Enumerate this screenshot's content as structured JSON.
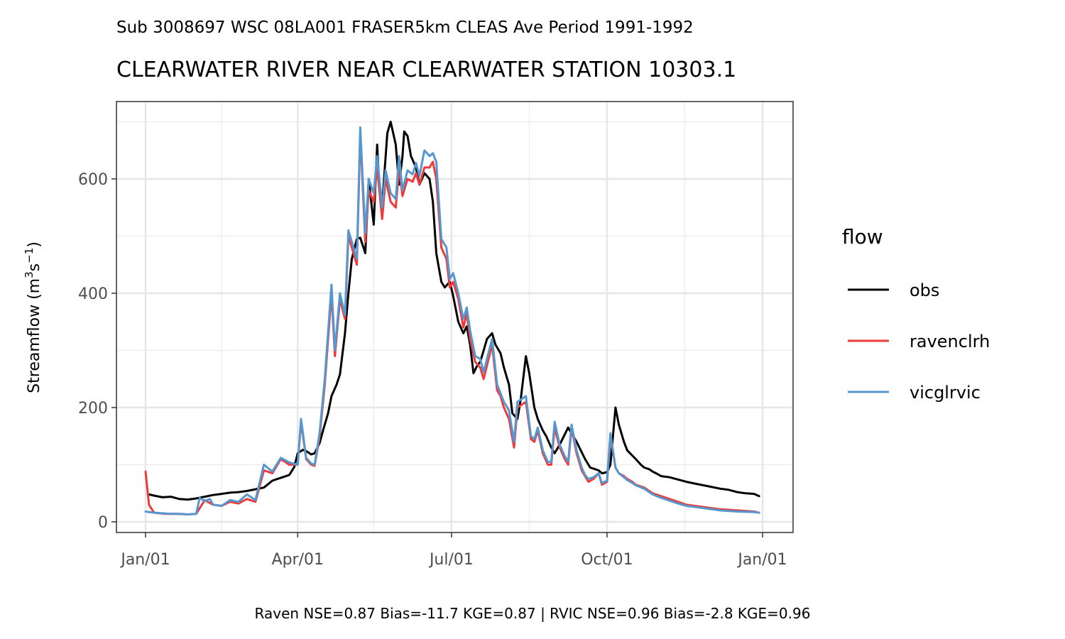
{
  "chart_data": {
    "type": "line",
    "subtitle": "Sub 3008697 WSC 08LA001 FRASER5km CLEAS Ave Period 1991-1992",
    "title": "CLEARWATER RIVER NEAR CLEARWATER STATION 10303.1",
    "xlabel": "",
    "ylabel": "Streamflow (m3s-1)",
    "ylabel_parts": {
      "base": "Streamflow (m",
      "sup1": "3",
      "mid": "s",
      "sup2": "−1",
      "end": ")"
    },
    "xlim": [
      "Jan/01",
      "Jan/01"
    ],
    "ylim": [
      -20,
      720
    ],
    "x_ticks": [
      {
        "day": 0,
        "label": "Jan/01"
      },
      {
        "day": 90,
        "label": "Apr/01"
      },
      {
        "day": 181,
        "label": "Jul/01"
      },
      {
        "day": 273,
        "label": "Oct/01"
      },
      {
        "day": 365,
        "label": "Jan/01"
      }
    ],
    "x_minor_days": [
      45,
      135,
      227,
      319
    ],
    "y_ticks": [
      0,
      200,
      400,
      600
    ],
    "y_minor": [
      100,
      300,
      500,
      700
    ],
    "grid": true,
    "legend": {
      "title": "flow",
      "position": "right"
    },
    "caption": "Raven NSE=0.87 Bias=-11.7 KGE=0.87 | RVIC NSE=0.96 Bias=-2.8 KGE=0.96",
    "series": [
      {
        "name": "obs",
        "color": "#000000",
        "x": [
          2,
          5,
          10,
          15,
          20,
          25,
          30,
          35,
          40,
          45,
          50,
          55,
          60,
          65,
          70,
          75,
          78,
          82,
          85,
          88,
          90,
          93,
          95,
          98,
          100,
          103,
          105,
          108,
          110,
          113,
          115,
          118,
          120,
          122,
          125,
          127,
          130,
          132,
          135,
          137,
          138,
          140,
          143,
          145,
          148,
          150,
          152,
          153,
          155,
          157,
          160,
          162,
          165,
          168,
          170,
          172,
          175,
          177,
          180,
          182,
          185,
          188,
          190,
          192,
          194,
          196,
          198,
          200,
          202,
          205,
          207,
          210,
          212,
          215,
          217,
          220,
          222,
          225,
          227,
          230,
          232,
          235,
          237,
          240,
          242,
          245,
          250,
          255,
          260,
          263,
          265,
          268,
          270,
          273,
          275,
          278,
          280,
          283,
          285,
          290,
          293,
          295,
          298,
          300,
          302,
          305,
          310,
          315,
          320,
          325,
          330,
          335,
          340,
          345,
          350,
          355,
          360,
          363
        ],
        "y": [
          48,
          46,
          43,
          44,
          40,
          39,
          41,
          44,
          47,
          49,
          51,
          52,
          54,
          57,
          60,
          72,
          75,
          79,
          82,
          96,
          120,
          126,
          124,
          118,
          120,
          138,
          160,
          190,
          220,
          240,
          258,
          330,
          400,
          460,
          495,
          497,
          470,
          600,
          520,
          660,
          600,
          555,
          680,
          700,
          660,
          590,
          640,
          683,
          675,
          640,
          620,
          590,
          610,
          600,
          560,
          470,
          420,
          410,
          420,
          395,
          350,
          330,
          342,
          310,
          260,
          272,
          280,
          300,
          320,
          330,
          310,
          295,
          270,
          240,
          190,
          180,
          215,
          290,
          260,
          200,
          180,
          160,
          150,
          130,
          120,
          135,
          165,
          140,
          110,
          95,
          93,
          90,
          85,
          87,
          100,
          200,
          170,
          140,
          125,
          110,
          100,
          95,
          92,
          88,
          85,
          80,
          78,
          74,
          70,
          67,
          64,
          61,
          58,
          56,
          52,
          50,
          49,
          45
        ]
      },
      {
        "name": "ravenclrh",
        "color": "#f03a3a",
        "x": [
          0,
          2,
          5,
          8,
          12,
          18,
          25,
          30,
          35,
          40,
          45,
          50,
          55,
          60,
          65,
          70,
          75,
          80,
          85,
          90,
          92,
          95,
          98,
          100,
          103,
          106,
          110,
          112,
          115,
          118,
          120,
          122,
          125,
          127,
          130,
          132,
          135,
          137,
          140,
          142,
          145,
          148,
          150,
          152,
          155,
          158,
          160,
          162,
          165,
          168,
          170,
          172,
          175,
          178,
          180,
          182,
          185,
          188,
          190,
          192,
          195,
          198,
          200,
          205,
          208,
          210,
          212,
          215,
          218,
          220,
          225,
          228,
          230,
          232,
          235,
          238,
          240,
          242,
          245,
          248,
          250,
          252,
          255,
          258,
          260,
          262,
          265,
          268,
          270,
          273,
          275,
          278,
          280,
          283,
          285,
          288,
          290,
          295,
          300,
          305,
          310,
          315,
          320,
          330,
          340,
          350,
          360,
          363
        ],
        "y": [
          88,
          30,
          16,
          15,
          14,
          14,
          13,
          14,
          38,
          30,
          28,
          35,
          32,
          40,
          35,
          90,
          85,
          110,
          100,
          100,
          175,
          110,
          100,
          98,
          150,
          240,
          400,
          290,
          390,
          355,
          500,
          480,
          450,
          680,
          490,
          580,
          560,
          620,
          530,
          600,
          560,
          550,
          620,
          570,
          600,
          595,
          610,
          590,
          620,
          620,
          630,
          600,
          480,
          460,
          410,
          420,
          390,
          340,
          365,
          320,
          280,
          270,
          250,
          310,
          230,
          220,
          200,
          180,
          130,
          200,
          210,
          145,
          140,
          160,
          120,
          100,
          100,
          165,
          130,
          110,
          100,
          165,
          120,
          90,
          80,
          70,
          75,
          85,
          65,
          70,
          150,
          95,
          85,
          80,
          75,
          70,
          65,
          60,
          50,
          45,
          40,
          35,
          30,
          26,
          22,
          20,
          18,
          16
        ]
      },
      {
        "name": "vicglrvic",
        "color": "#5597cf",
        "x": [
          0,
          5,
          10,
          15,
          20,
          25,
          30,
          32,
          35,
          38,
          40,
          45,
          50,
          55,
          60,
          65,
          70,
          75,
          80,
          85,
          90,
          92,
          95,
          98,
          100,
          103,
          106,
          110,
          112,
          115,
          118,
          120,
          122,
          125,
          127,
          130,
          132,
          135,
          137,
          140,
          142,
          145,
          148,
          150,
          152,
          155,
          158,
          160,
          162,
          165,
          168,
          170,
          172,
          175,
          178,
          180,
          182,
          185,
          188,
          190,
          192,
          195,
          198,
          200,
          205,
          208,
          210,
          212,
          215,
          218,
          220,
          225,
          228,
          230,
          232,
          235,
          238,
          240,
          242,
          245,
          248,
          250,
          252,
          255,
          258,
          260,
          262,
          265,
          268,
          270,
          273,
          275,
          278,
          280,
          283,
          285,
          288,
          290,
          295,
          300,
          305,
          310,
          315,
          320,
          330,
          340,
          350,
          360,
          363
        ],
        "y": [
          18,
          16,
          15,
          14,
          14,
          13,
          14,
          42,
          36,
          40,
          30,
          28,
          38,
          35,
          48,
          38,
          100,
          88,
          112,
          104,
          100,
          180,
          112,
          102,
          100,
          156,
          250,
          415,
          300,
          400,
          362,
          510,
          490,
          460,
          690,
          505,
          600,
          575,
          640,
          550,
          615,
          575,
          565,
          640,
          580,
          615,
          608,
          628,
          605,
          650,
          640,
          645,
          630,
          495,
          480,
          425,
          435,
          400,
          355,
          375,
          335,
          290,
          285,
          262,
          320,
          240,
          225,
          210,
          195,
          140,
          210,
          220,
          150,
          145,
          165,
          125,
          105,
          105,
          175,
          135,
          115,
          105,
          170,
          125,
          95,
          82,
          75,
          78,
          85,
          68,
          72,
          155,
          95,
          85,
          78,
          73,
          68,
          64,
          58,
          48,
          42,
          37,
          32,
          28,
          24,
          20,
          18,
          17,
          16
        ]
      }
    ]
  }
}
